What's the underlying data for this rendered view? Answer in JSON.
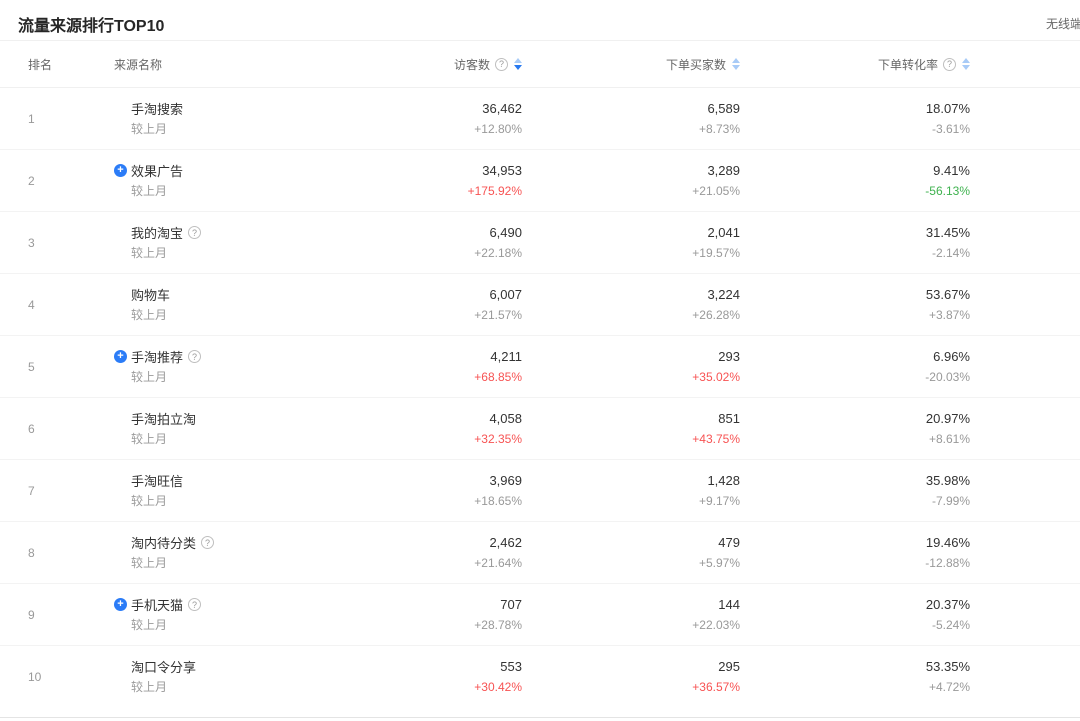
{
  "page": {
    "title": "流量来源排行TOP10",
    "corner_label": "无线端",
    "compare_label": "较上月"
  },
  "colors": {
    "red": "#f75353",
    "green": "#3fb24f",
    "gray": "#999999",
    "accent_blue": "#2b7cf7"
  },
  "table": {
    "headers": {
      "rank": "排名",
      "source": "来源名称",
      "visitors": "访客数",
      "buyers": "下单买家数",
      "conversion": "下单转化率"
    },
    "sort_state": {
      "visitors": "desc",
      "buyers": "none",
      "conversion": "none"
    },
    "rows": [
      {
        "rank": "1",
        "name": "手淘搜索",
        "plus": false,
        "help": false,
        "visitors": "36,462",
        "visitors_change": "+12.80%",
        "visitors_change_color": "gray",
        "buyers": "6,589",
        "buyers_change": "+8.73%",
        "buyers_change_color": "gray",
        "conversion": "18.07%",
        "conversion_change": "-3.61%",
        "conversion_change_color": "gray"
      },
      {
        "rank": "2",
        "name": "效果广告",
        "plus": true,
        "help": false,
        "visitors": "34,953",
        "visitors_change": "+175.92%",
        "visitors_change_color": "red",
        "buyers": "3,289",
        "buyers_change": "+21.05%",
        "buyers_change_color": "gray",
        "conversion": "9.41%",
        "conversion_change": "-56.13%",
        "conversion_change_color": "green"
      },
      {
        "rank": "3",
        "name": "我的淘宝",
        "plus": false,
        "help": true,
        "visitors": "6,490",
        "visitors_change": "+22.18%",
        "visitors_change_color": "gray",
        "buyers": "2,041",
        "buyers_change": "+19.57%",
        "buyers_change_color": "gray",
        "conversion": "31.45%",
        "conversion_change": "-2.14%",
        "conversion_change_color": "gray"
      },
      {
        "rank": "4",
        "name": "购物车",
        "plus": false,
        "help": false,
        "visitors": "6,007",
        "visitors_change": "+21.57%",
        "visitors_change_color": "gray",
        "buyers": "3,224",
        "buyers_change": "+26.28%",
        "buyers_change_color": "gray",
        "conversion": "53.67%",
        "conversion_change": "+3.87%",
        "conversion_change_color": "gray"
      },
      {
        "rank": "5",
        "name": "手淘推荐",
        "plus": true,
        "help": true,
        "visitors": "4,211",
        "visitors_change": "+68.85%",
        "visitors_change_color": "red",
        "buyers": "293",
        "buyers_change": "+35.02%",
        "buyers_change_color": "red",
        "conversion": "6.96%",
        "conversion_change": "-20.03%",
        "conversion_change_color": "gray"
      },
      {
        "rank": "6",
        "name": "手淘拍立淘",
        "plus": false,
        "help": false,
        "visitors": "4,058",
        "visitors_change": "+32.35%",
        "visitors_change_color": "red",
        "buyers": "851",
        "buyers_change": "+43.75%",
        "buyers_change_color": "red",
        "conversion": "20.97%",
        "conversion_change": "+8.61%",
        "conversion_change_color": "gray"
      },
      {
        "rank": "7",
        "name": "手淘旺信",
        "plus": false,
        "help": false,
        "visitors": "3,969",
        "visitors_change": "+18.65%",
        "visitors_change_color": "gray",
        "buyers": "1,428",
        "buyers_change": "+9.17%",
        "buyers_change_color": "gray",
        "conversion": "35.98%",
        "conversion_change": "-7.99%",
        "conversion_change_color": "gray"
      },
      {
        "rank": "8",
        "name": "淘内待分类",
        "plus": false,
        "help": true,
        "visitors": "2,462",
        "visitors_change": "+21.64%",
        "visitors_change_color": "gray",
        "buyers": "479",
        "buyers_change": "+5.97%",
        "buyers_change_color": "gray",
        "conversion": "19.46%",
        "conversion_change": "-12.88%",
        "conversion_change_color": "gray"
      },
      {
        "rank": "9",
        "name": "手机天猫",
        "plus": true,
        "help": true,
        "visitors": "707",
        "visitors_change": "+28.78%",
        "visitors_change_color": "gray",
        "buyers": "144",
        "buyers_change": "+22.03%",
        "buyers_change_color": "gray",
        "conversion": "20.37%",
        "conversion_change": "-5.24%",
        "conversion_change_color": "gray"
      },
      {
        "rank": "10",
        "name": "淘口令分享",
        "plus": false,
        "help": false,
        "visitors": "553",
        "visitors_change": "+30.42%",
        "visitors_change_color": "red",
        "buyers": "295",
        "buyers_change": "+36.57%",
        "buyers_change_color": "red",
        "conversion": "53.35%",
        "conversion_change": "+4.72%",
        "conversion_change_color": "gray"
      }
    ]
  }
}
